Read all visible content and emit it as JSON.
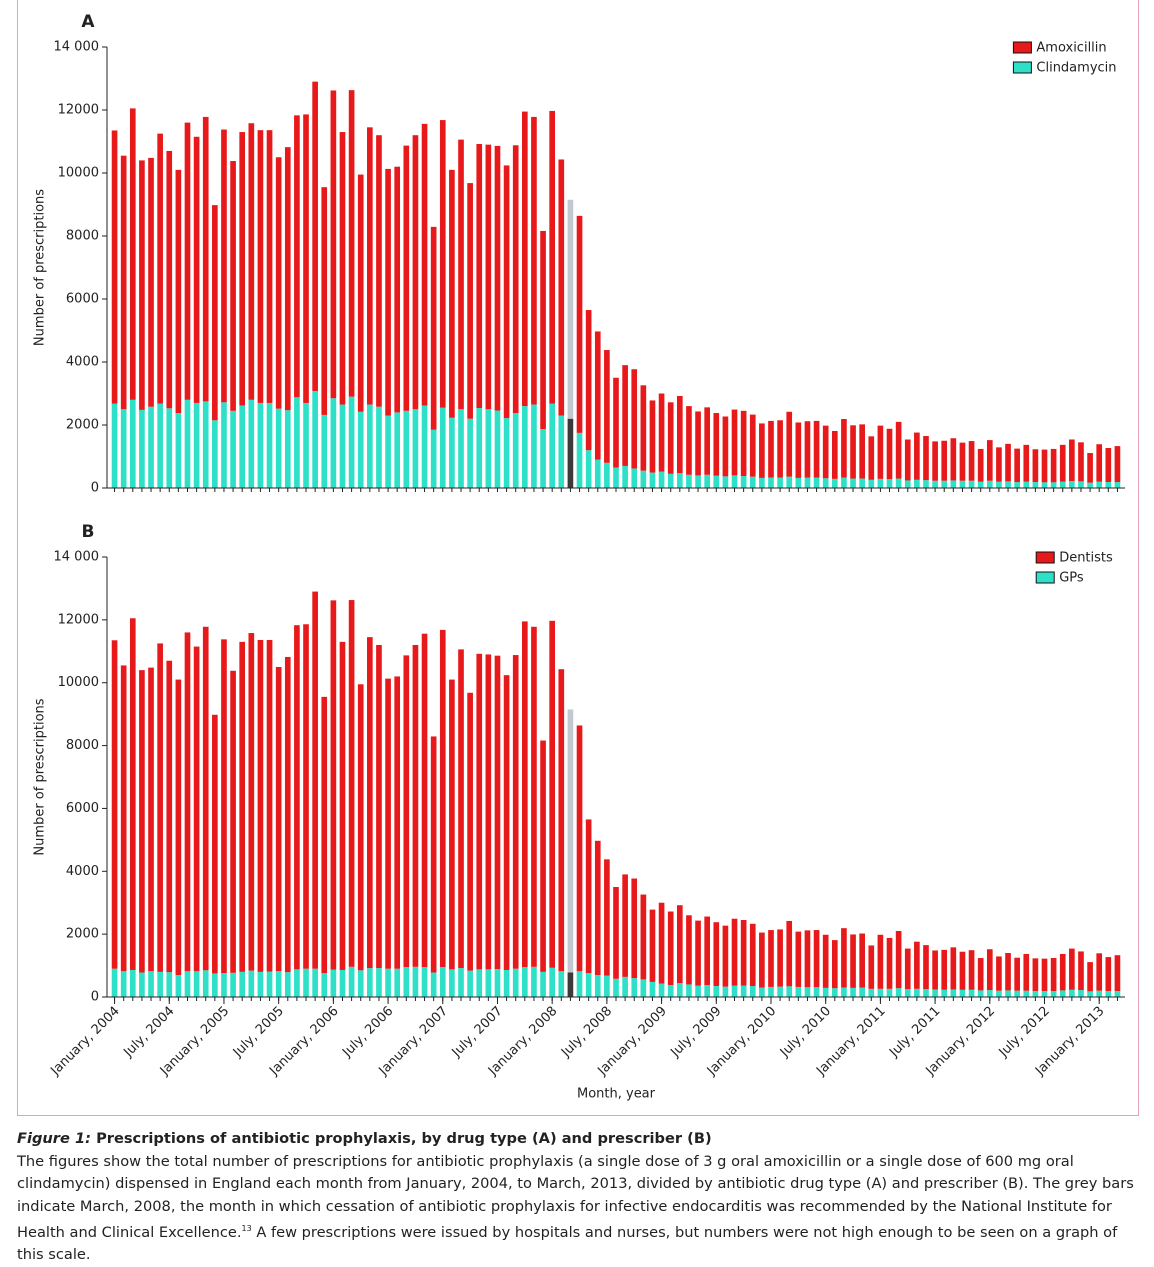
{
  "chart_data": [
    {
      "type": "bar",
      "stacked": true,
      "title": "A",
      "ylabel": "Number of prescriptions",
      "legend": "upper right",
      "highlight": {
        "index": 50,
        "colors": [
          "#c3c7cf",
          "#3a3a3a"
        ]
      },
      "ylim": [
        0,
        14000
      ],
      "yticks": [
        0,
        2000,
        4000,
        6000,
        8000,
        10000,
        12000,
        {
          "value": 14000,
          "label": "14 000"
        }
      ],
      "series": [
        {
          "name": "Amoxicillin",
          "color": "#e8191a",
          "values": [
            8670,
            8050,
            9250,
            7920,
            7900,
            8570,
            8170,
            7720,
            8800,
            8450,
            9030,
            6830,
            8660,
            7930,
            8680,
            8780,
            8660,
            8660,
            7980,
            8350,
            8950,
            9160,
            9820,
            7230,
            9770,
            8650,
            9730,
            7530,
            8800,
            8620,
            7830,
            7800,
            8420,
            8700,
            8940,
            6440,
            9130,
            7870,
            8560,
            7480,
            8380,
            8400,
            8400,
            8020,
            8500,
            9350,
            9130,
            6290,
            9290,
            8130,
            6950,
            6890,
            4450,
            4070,
            3580,
            2850,
            3200,
            3150,
            2710,
            2290,
            2480,
            2270,
            2450,
            2180,
            2030,
            2140,
            1990,
            1900,
            2090,
            2070,
            1970,
            1730,
            1800,
            1820,
            2060,
            1760,
            1790,
            1800,
            1670,
            1520,
            1860,
            1690,
            1720,
            1380,
            1690,
            1600,
            1800,
            1300,
            1500,
            1400,
            1250,
            1270,
            1340,
            1210,
            1260,
            1040,
            1290,
            1090,
            1190,
            1060,
            1170,
            1040,
            1040,
            1060,
            1170,
            1320,
            1240,
            940,
            1190,
            1080,
            1140
          ]
        },
        {
          "name": "Clindamycin",
          "color": "#2ee0c8",
          "values": [
            2680,
            2500,
            2800,
            2480,
            2580,
            2680,
            2530,
            2380,
            2800,
            2700,
            2750,
            2150,
            2720,
            2450,
            2620,
            2800,
            2700,
            2700,
            2520,
            2470,
            2880,
            2700,
            3080,
            2320,
            2850,
            2650,
            2900,
            2420,
            2650,
            2580,
            2300,
            2400,
            2450,
            2500,
            2620,
            1850,
            2550,
            2230,
            2500,
            2200,
            2540,
            2500,
            2460,
            2220,
            2380,
            2600,
            2650,
            1870,
            2680,
            2300,
            2200,
            1750,
            1200,
            900,
            800,
            650,
            700,
            620,
            550,
            490,
            520,
            450,
            470,
            420,
            400,
            420,
            390,
            370,
            400,
            380,
            360,
            320,
            330,
            330,
            360,
            320,
            330,
            330,
            310,
            290,
            330,
            300,
            300,
            260,
            290,
            280,
            300,
            240,
            260,
            250,
            230,
            230,
            240,
            230,
            230,
            200,
            230,
            200,
            210,
            190,
            200,
            190,
            180,
            180,
            200,
            220,
            210,
            170,
            200,
            190,
            190
          ]
        }
      ]
    },
    {
      "type": "bar",
      "stacked": true,
      "title": "B",
      "ylabel": "Number of prescriptions",
      "xlabel": "Month, year",
      "legend": "upper right",
      "highlight": {
        "index": 50,
        "colors": [
          "#c3c7cf",
          "#3a3a3a"
        ]
      },
      "ylim": [
        0,
        14000
      ],
      "yticks": [
        0,
        2000,
        4000,
        6000,
        8000,
        10000,
        12000,
        {
          "value": 14000,
          "label": "14 000"
        }
      ],
      "categories": [
        "January, 2004",
        null,
        null,
        null,
        null,
        null,
        "July, 2004",
        null,
        null,
        null,
        null,
        null,
        "January, 2005",
        null,
        null,
        null,
        null,
        null,
        "July, 2005",
        null,
        null,
        null,
        null,
        null,
        "January, 2006",
        null,
        null,
        null,
        null,
        null,
        "July, 2006",
        null,
        null,
        null,
        null,
        null,
        "January, 2007",
        null,
        null,
        null,
        null,
        null,
        "July, 2007",
        null,
        null,
        null,
        null,
        null,
        "January, 2008",
        null,
        null,
        null,
        null,
        null,
        "July, 2008",
        null,
        null,
        null,
        null,
        null,
        "January, 2009",
        null,
        null,
        null,
        null,
        null,
        "July, 2009",
        null,
        null,
        null,
        null,
        null,
        "January, 2010",
        null,
        null,
        null,
        null,
        null,
        "July, 2010",
        null,
        null,
        null,
        null,
        null,
        "January, 2011",
        null,
        null,
        null,
        null,
        null,
        "July, 2011",
        null,
        null,
        null,
        null,
        null,
        "January, 2012",
        null,
        null,
        null,
        null,
        null,
        "July, 2012",
        null,
        null,
        null,
        null,
        null,
        "January, 2013",
        null,
        null
      ],
      "series": [
        {
          "name": "Dentists",
          "color": "#e8191a",
          "values": [
            10450,
            9730,
            11190,
            9620,
            9660,
            10450,
            9910,
            9400,
            10780,
            10330,
            10930,
            8230,
            10620,
            9610,
            10500,
            10740,
            10560,
            10550,
            9680,
            10030,
            10950,
            10960,
            12000,
            8790,
            11750,
            10440,
            11670,
            9100,
            10530,
            10280,
            9230,
            9300,
            9920,
            10240,
            10610,
            7510,
            10730,
            9220,
            10140,
            8840,
            10040,
            10020,
            9970,
            9380,
            9980,
            11000,
            10820,
            7360,
            11040,
            9610,
            8370,
            7820,
            4890,
            4270,
            3700,
            2920,
            3260,
            3170,
            2700,
            2300,
            2570,
            2340,
            2480,
            2200,
            2070,
            2180,
            2030,
            1940,
            2130,
            2090,
            1980,
            1750,
            1810,
            1820,
            2080,
            1760,
            1810,
            1820,
            1690,
            1530,
            1890,
            1700,
            1720,
            1380,
            1720,
            1620,
            1820,
            1290,
            1500,
            1400,
            1240,
            1270,
            1340,
            1210,
            1260,
            1030,
            1300,
            1090,
            1190,
            1050,
            1170,
            1040,
            1030,
            1050,
            1160,
            1310,
            1230,
            930,
            1190,
            1080,
            1140
          ]
        },
        {
          "name": "GPs",
          "color": "#2ee0c8",
          "values": [
            900,
            820,
            860,
            780,
            820,
            800,
            790,
            700,
            820,
            820,
            850,
            750,
            760,
            770,
            800,
            840,
            800,
            810,
            820,
            790,
            880,
            900,
            900,
            760,
            870,
            860,
            960,
            850,
            920,
            920,
            900,
            900,
            950,
            960,
            950,
            780,
            950,
            880,
            920,
            840,
            880,
            880,
            890,
            860,
            900,
            950,
            960,
            800,
            930,
            820,
            780,
            820,
            760,
            700,
            680,
            580,
            640,
            600,
            560,
            480,
            430,
            380,
            440,
            400,
            360,
            380,
            350,
            330,
            360,
            360,
            350,
            300,
            320,
            330,
            340,
            320,
            310,
            310,
            290,
            280,
            300,
            290,
            300,
            260,
            260,
            260,
            280,
            250,
            260,
            250,
            240,
            230,
            240,
            230,
            230,
            210,
            220,
            200,
            210,
            200,
            200,
            190,
            190,
            190,
            210,
            230,
            220,
            180,
            200,
            190,
            190
          ]
        }
      ]
    }
  ],
  "caption": {
    "label": "Figure 1:",
    "title": "Prescriptions of antibiotic prophylaxis, by drug type (A) and prescriber (B)",
    "text": "The figures show the total number of prescriptions for antibiotic prophylaxis (a single dose of 3 g oral amoxicillin or a single dose of 600 mg oral clindamycin) dispensed in England each month from January, 2004, to March, 2013, divided by antibiotic drug type (A) and prescriber (B). The grey bars indicate March, 2008, the month in which cessation of antibiotic prophylaxis for infective endocarditis was recommended by the National Institute for Health and Clinical Excellence.",
    "ref": "13",
    "text2": " A few prescriptions were issued by hospitals and nurses, but numbers were not high enough to be seen on a graph of this scale."
  }
}
